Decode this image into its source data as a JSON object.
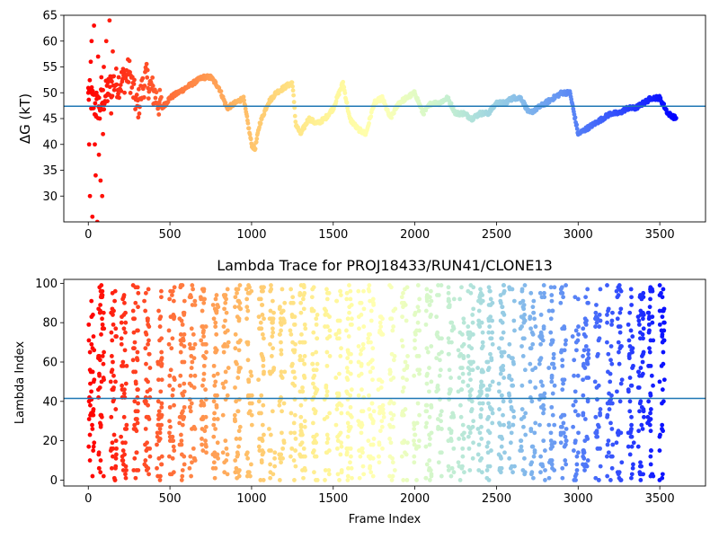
{
  "chart_data": [
    {
      "type": "scatter",
      "title": "",
      "xlabel": "",
      "ylabel": "ΔG (kT)",
      "xlim": [
        -150,
        3780
      ],
      "ylim": [
        25,
        65
      ],
      "xticks": [
        0,
        500,
        1000,
        1500,
        2000,
        2500,
        3000,
        3500
      ],
      "yticks": [
        30,
        35,
        40,
        45,
        50,
        55,
        60,
        65
      ],
      "hline": 47.4,
      "hline_color": "#1f77b4",
      "colormap": "rainbow (red at frame 0 → violet at frame 3600)",
      "grid": false,
      "series_trace": {
        "x": [
          0,
          50,
          100,
          150,
          200,
          250,
          300,
          350,
          400,
          450,
          500,
          550,
          600,
          650,
          700,
          750,
          800,
          850,
          900,
          950,
          1000,
          1020,
          1050,
          1100,
          1150,
          1200,
          1250,
          1270,
          1300,
          1350,
          1400,
          1450,
          1500,
          1560,
          1600,
          1650,
          1700,
          1750,
          1800,
          1850,
          1900,
          1950,
          2000,
          2050,
          2100,
          2150,
          2200,
          2250,
          2300,
          2350,
          2400,
          2450,
          2500,
          2550,
          2600,
          2650,
          2700,
          2750,
          2800,
          2850,
          2900,
          2950,
          3000,
          3050,
          3100,
          3150,
          3200,
          3250,
          3300,
          3350,
          3400,
          3450,
          3500,
          3550,
          3600
        ],
        "y": [
          50,
          47,
          49,
          52,
          52,
          54,
          47,
          53,
          50,
          47,
          49,
          50,
          51,
          52,
          53,
          53,
          51,
          47,
          48,
          49,
          40,
          39,
          44,
          48,
          50,
          51,
          52,
          44,
          42,
          45,
          44,
          45,
          47,
          52,
          45,
          43,
          42,
          48,
          49,
          45,
          48,
          49,
          50,
          46,
          48,
          48,
          49,
          46,
          46,
          45,
          46,
          46,
          48,
          48,
          49,
          49,
          46,
          47,
          48,
          49,
          50,
          50,
          42,
          43,
          44,
          45,
          46,
          46,
          47,
          47,
          48,
          49,
          49,
          46,
          45
        ]
      },
      "series_early_scatter": {
        "x": [
          0,
          5,
          10,
          15,
          20,
          25,
          30,
          35,
          40,
          45,
          50,
          55,
          60,
          65,
          70,
          75,
          80,
          85,
          90,
          95,
          100,
          110,
          120,
          130,
          140,
          150
        ],
        "y": [
          50,
          40,
          30,
          56,
          60,
          26,
          47,
          63,
          40,
          34,
          50,
          25,
          57,
          38,
          45,
          33,
          53,
          30,
          42,
          55,
          48,
          60,
          52,
          64,
          46,
          58
        ]
      }
    },
    {
      "type": "scatter",
      "title": "Lambda Trace for PROJ18433/RUN41/CLONE13",
      "xlabel": "Frame Index",
      "ylabel": "Lambda Index",
      "xlim": [
        -150,
        3780
      ],
      "ylim": [
        -3,
        102
      ],
      "xticks": [
        0,
        500,
        1000,
        1500,
        2000,
        2500,
        3000,
        3500
      ],
      "yticks": [
        0,
        20,
        40,
        60,
        80,
        100
      ],
      "hline": 41.5,
      "hline_color": "#1f77b4",
      "colormap": "rainbow (red at frame 0 → violet at frame 3600)",
      "grid": false,
      "point_count": 2200,
      "frame_range": [
        0,
        3600
      ],
      "lambda_range": [
        0,
        99
      ]
    }
  ]
}
